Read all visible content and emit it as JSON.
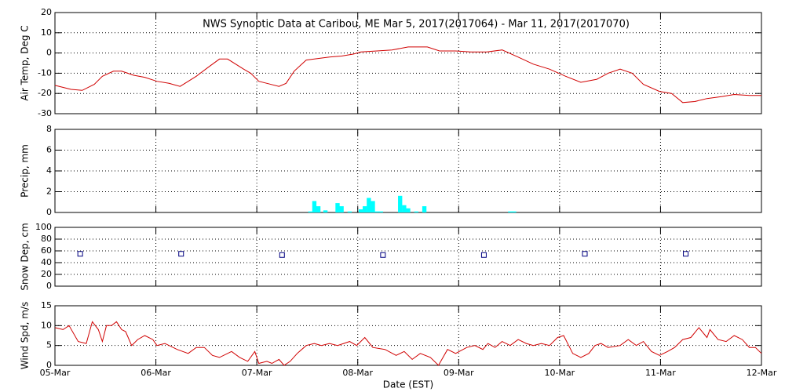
{
  "chart_data": [
    {
      "type": "line",
      "title": "NWS Synoptic Data at Caribou, ME   Mar  5, 2017(2017064) - Mar 11, 2017(2017070)",
      "ylabel": "Air Temp, Deg C",
      "color": "#d00000",
      "x": [
        0,
        0.16,
        0.27,
        0.39,
        0.47,
        0.58,
        0.66,
        0.78,
        0.89,
        1.01,
        1.13,
        1.24,
        1.4,
        1.52,
        1.63,
        1.71,
        1.87,
        1.94,
        2.02,
        2.1,
        2.22,
        2.29,
        2.37,
        2.49,
        2.57,
        2.72,
        2.84,
        2.96,
        3.03,
        3.19,
        3.34,
        3.5,
        3.69,
        3.81,
        3.97,
        4.12,
        4.28,
        4.43,
        4.59,
        4.74,
        4.9,
        5.06,
        5.21,
        5.37,
        5.48,
        5.6,
        5.72,
        5.83,
        5.99,
        6.11,
        6.22,
        6.34,
        6.46,
        6.61,
        6.73,
        6.88,
        7.0
      ],
      "values": [
        -16,
        -18,
        -18.5,
        -15.5,
        -11.5,
        -9,
        -9,
        -11,
        -12,
        -14,
        -15,
        -16.5,
        -11.5,
        -7,
        -3,
        -3,
        -8,
        -10,
        -14,
        -15,
        -16.5,
        -15,
        -9,
        -3.5,
        -3,
        -2,
        -1.5,
        -0.5,
        0.5,
        1,
        1.5,
        3,
        3,
        1,
        1,
        0.5,
        0.5,
        1.5,
        -2,
        -5.5,
        -8,
        -11.5,
        -14.5,
        -13,
        -10,
        -8,
        -10,
        -15.5,
        -19,
        -20,
        -24.5,
        -24,
        -22.5,
        -21.5,
        -20.5,
        -21,
        -21
      ],
      "xlim": [
        0,
        7
      ],
      "xticks": [
        0,
        1,
        2,
        3,
        4,
        5,
        6,
        7
      ],
      "ylim": [
        -30,
        20
      ],
      "yticks": [
        -30,
        -20,
        -10,
        0,
        10,
        20
      ],
      "grid": true
    },
    {
      "type": "bar",
      "ylabel": "Precip, mm",
      "color": "#00ffff",
      "x": [
        2.53,
        2.57,
        2.61,
        2.68,
        2.8,
        2.84,
        2.92,
        3.03,
        3.07,
        3.11,
        3.15,
        3.19,
        3.23,
        3.42,
        3.46,
        3.5,
        3.58,
        3.66,
        4.51,
        4.55
      ],
      "values": [
        0.1,
        1.1,
        0.6,
        0.2,
        0.9,
        0.6,
        0.1,
        0.3,
        0.6,
        1.4,
        1.1,
        0.1,
        0.1,
        1.6,
        0.7,
        0.4,
        0.1,
        0.6,
        0.1,
        0.1
      ],
      "xlim": [
        0,
        7
      ],
      "xticks": [
        0,
        1,
        2,
        3,
        4,
        5,
        6,
        7
      ],
      "ylim": [
        0,
        8
      ],
      "yticks": [
        0,
        2,
        4,
        6,
        8
      ],
      "grid": true
    },
    {
      "type": "scatter",
      "ylabel": "Snow Dep, cm",
      "color": "#000080",
      "x": [
        0.25,
        1.25,
        2.25,
        3.25,
        4.25,
        5.25,
        6.25
      ],
      "values": [
        55,
        55,
        53,
        53,
        53,
        55,
        55
      ],
      "xlim": [
        0,
        7
      ],
      "xticks": [
        0,
        1,
        2,
        3,
        4,
        5,
        6,
        7
      ],
      "ylim": [
        0,
        100
      ],
      "yticks": [
        0,
        20,
        40,
        60,
        80,
        100
      ],
      "grid": true
    },
    {
      "type": "line",
      "ylabel": "Wind Spd, m/s",
      "xlabel": "Date (EST)",
      "color": "#d00000",
      "x": [
        0,
        0.08,
        0.14,
        0.23,
        0.31,
        0.37,
        0.43,
        0.47,
        0.51,
        0.56,
        0.61,
        0.66,
        0.7,
        0.76,
        0.82,
        0.89,
        0.97,
        1.01,
        1.09,
        1.21,
        1.32,
        1.4,
        1.48,
        1.56,
        1.63,
        1.75,
        1.83,
        1.91,
        1.98,
        2.02,
        2.1,
        2.15,
        2.22,
        2.27,
        2.33,
        2.4,
        2.49,
        2.57,
        2.64,
        2.72,
        2.8,
        2.92,
        2.99,
        3.07,
        3.15,
        3.27,
        3.38,
        3.46,
        3.54,
        3.62,
        3.72,
        3.8,
        3.89,
        3.97,
        4.08,
        4.16,
        4.24,
        4.29,
        4.36,
        4.43,
        4.51,
        4.59,
        4.67,
        4.74,
        4.82,
        4.9,
        4.98,
        5.04,
        5.13,
        5.21,
        5.29,
        5.35,
        5.41,
        5.48,
        5.6,
        5.68,
        5.76,
        5.83,
        5.91,
        5.99,
        6.07,
        6.14,
        6.22,
        6.3,
        6.38,
        6.46,
        6.49,
        6.57,
        6.65,
        6.73,
        6.81,
        6.88,
        6.94,
        7.0
      ],
      "values": [
        9.5,
        9,
        10,
        6,
        5.5,
        11,
        9,
        6,
        10,
        10,
        11,
        9,
        8.5,
        5,
        6.5,
        7.5,
        6.5,
        5,
        5.5,
        4,
        3,
        4.5,
        4.5,
        2.5,
        2,
        3.5,
        2,
        1,
        3.5,
        0.5,
        1,
        0.5,
        1.5,
        0,
        1,
        3,
        5,
        5.5,
        5,
        5.5,
        5,
        6,
        5,
        7,
        4.5,
        4,
        2.5,
        3.5,
        1.5,
        3,
        2,
        0,
        4,
        3,
        4.5,
        5,
        4,
        5.5,
        4.5,
        6,
        5,
        6.5,
        5.5,
        5,
        5.5,
        5,
        7,
        7.5,
        3,
        2,
        3,
        5,
        5.5,
        4.5,
        5,
        6.5,
        5,
        6,
        3.5,
        2.5,
        3.5,
        4.5,
        6.5,
        7,
        9.5,
        7,
        9,
        6.5,
        6,
        7.5,
        6.5,
        4.5,
        4.5,
        3
      ],
      "xlim": [
        0,
        7
      ],
      "xticks": [
        {
          "value": 0,
          "label": "05-Mar"
        },
        {
          "value": 1,
          "label": "06-Mar"
        },
        {
          "value": 2,
          "label": "07-Mar"
        },
        {
          "value": 3,
          "label": "08-Mar"
        },
        {
          "value": 4,
          "label": "09-Mar"
        },
        {
          "value": 5,
          "label": "10-Mar"
        },
        {
          "value": 6,
          "label": "11-Mar"
        },
        {
          "value": 7,
          "label": "12-Mar"
        }
      ],
      "ylim": [
        0,
        15
      ],
      "yticks": [
        0,
        5,
        10,
        15
      ],
      "grid": true
    }
  ]
}
